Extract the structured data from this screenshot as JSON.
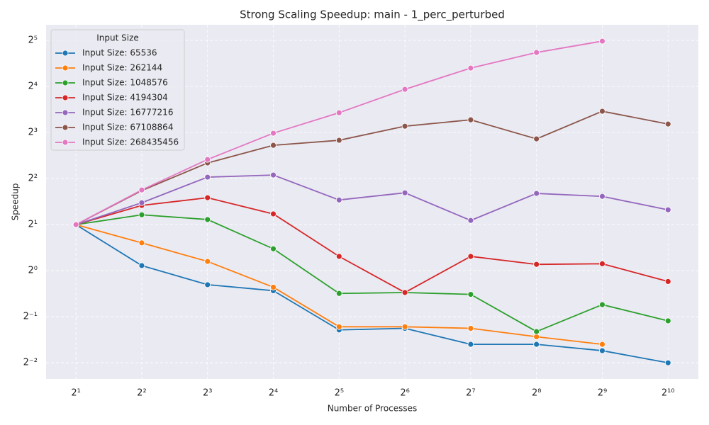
{
  "chart_data": {
    "type": "line",
    "title": "Strong Scaling Speedup: main - 1_perc_perturbed",
    "x_label": "Number of Processes",
    "y_label": "Speedup",
    "x_log_base": 2,
    "y_log_base": 2,
    "x": [
      2,
      4,
      8,
      16,
      32,
      64,
      128,
      256,
      512,
      1024
    ],
    "xlim": [
      1.46,
      1409
    ],
    "xticks": [
      {
        "value": 2,
        "label": "2¹"
      },
      {
        "value": 4,
        "label": "2²"
      },
      {
        "value": 8,
        "label": "2³"
      },
      {
        "value": 16,
        "label": "2⁴"
      },
      {
        "value": 32,
        "label": "2⁵"
      },
      {
        "value": 64,
        "label": "2⁶"
      },
      {
        "value": 128,
        "label": "2⁷"
      },
      {
        "value": 256,
        "label": "2⁸"
      },
      {
        "value": 512,
        "label": "2⁹"
      },
      {
        "value": 1024,
        "label": "2¹⁰"
      }
    ],
    "ylim": [
      0.196,
      40.5
    ],
    "yticks": [
      {
        "value": 0.25,
        "label": "2⁻²"
      },
      {
        "value": 0.5,
        "label": "2⁻¹"
      },
      {
        "value": 1,
        "label": "2⁰"
      },
      {
        "value": 2,
        "label": "2¹"
      },
      {
        "value": 4,
        "label": "2²"
      },
      {
        "value": 8,
        "label": "2³"
      },
      {
        "value": 16,
        "label": "2⁴"
      },
      {
        "value": 32,
        "label": "2⁵"
      }
    ],
    "grid": true,
    "legend_title": "Input Size",
    "legend_position": "upper-left",
    "series": [
      {
        "name": "Input Size: 65536",
        "color": "#1f77b4",
        "values": [
          2,
          1.08,
          0.81,
          0.74,
          0.41,
          0.42,
          0.33,
          0.33,
          0.3,
          0.25
        ]
      },
      {
        "name": "Input Size: 262144",
        "color": "#ff7f0e",
        "values": [
          2,
          1.52,
          1.15,
          0.78,
          0.43,
          0.43,
          0.42,
          0.37,
          0.33,
          null
        ]
      },
      {
        "name": "Input Size: 1048576",
        "color": "#2ca02c",
        "values": [
          2,
          2.32,
          2.16,
          1.39,
          0.71,
          0.72,
          0.7,
          0.4,
          0.6,
          0.47
        ]
      },
      {
        "name": "Input Size: 4194304",
        "color": "#d62728",
        "values": [
          2,
          2.67,
          3.0,
          2.35,
          1.24,
          0.72,
          1.24,
          1.1,
          1.11,
          0.85
        ]
      },
      {
        "name": "Input Size: 16777216",
        "color": "#9467bd",
        "values": [
          2,
          2.78,
          4.09,
          4.22,
          2.9,
          3.23,
          2.13,
          3.2,
          3.06,
          2.5
        ]
      },
      {
        "name": "Input Size: 67108864",
        "color": "#8c564b",
        "values": [
          2,
          3.34,
          5.06,
          6.6,
          7.12,
          8.8,
          9.69,
          7.27,
          11.02,
          9.09
        ]
      },
      {
        "name": "Input Size: 268435456",
        "color": "#e377c2",
        "values": [
          2,
          3.37,
          5.33,
          7.92,
          10.78,
          15.33,
          21.11,
          26.69,
          31.67,
          null
        ]
      }
    ]
  }
}
